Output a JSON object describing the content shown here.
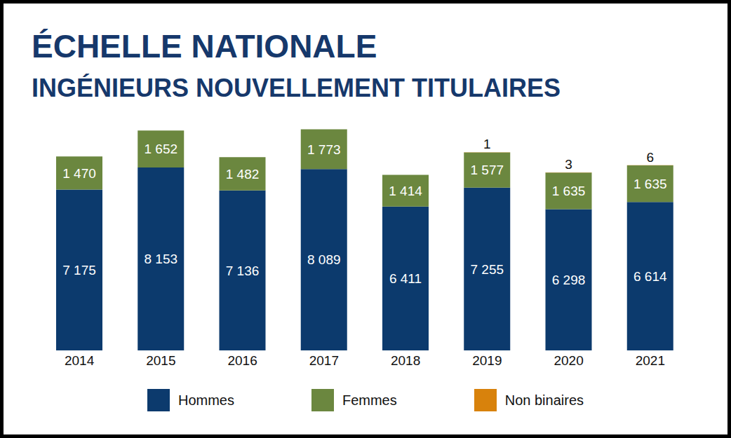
{
  "chart_data": {
    "type": "bar",
    "title": "ÉCHELLE NATIONALE",
    "subtitle": "INGÉNIEURS NOUVELLEMENT TITULAIRES",
    "categories": [
      "2014",
      "2015",
      "2016",
      "2017",
      "2018",
      "2019",
      "2020",
      "2021"
    ],
    "series": [
      {
        "name": "Hommes",
        "color": "#0c3a6d",
        "values": [
          7175,
          8153,
          7136,
          8089,
          6411,
          7255,
          6298,
          6614
        ],
        "value_labels": [
          "7 175",
          "8 153",
          "7 136",
          "8 089",
          "6 411",
          "7 255",
          "6 298",
          "6 614"
        ]
      },
      {
        "name": "Femmes",
        "color": "#6b873f",
        "values": [
          1470,
          1652,
          1482,
          1773,
          1414,
          1577,
          1635,
          1635
        ],
        "value_labels": [
          "1 470",
          "1 652",
          "1 482",
          "1 773",
          "1 414",
          "1 577",
          "1 635",
          "1 635"
        ]
      },
      {
        "name": "Non binaires",
        "color": "#d8820c",
        "values": [
          null,
          null,
          null,
          null,
          null,
          1,
          3,
          6
        ]
      }
    ],
    "ylim": [
      0,
      10000
    ],
    "stacked": true,
    "data_labels": true,
    "tick_labels": "x",
    "legend": "bottom"
  }
}
